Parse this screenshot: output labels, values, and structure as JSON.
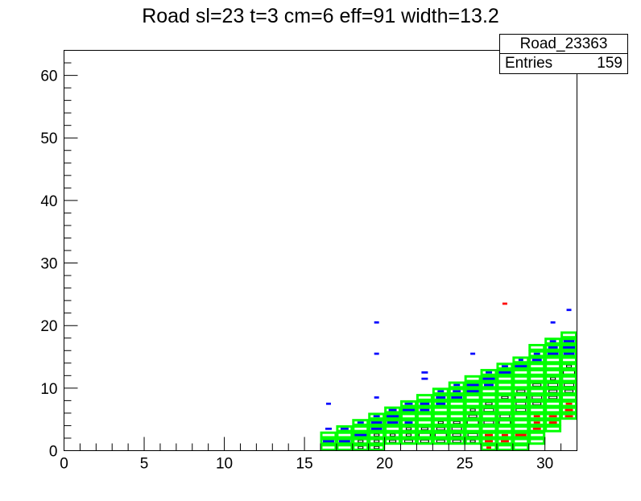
{
  "title": "Road sl=23 t=3 cm=6 eff=91 width=13.2",
  "stats": {
    "name": "Road_23363",
    "entries_label": "Entries",
    "entries_value": "159"
  },
  "colors": {
    "green": "#00ff00",
    "blue": "#0000ff",
    "red": "#ff0000",
    "black": "#000000"
  },
  "chart_data": {
    "type": "heatmap",
    "title": "Road sl=23 t=3 cm=6 eff=91 width=13.2",
    "xlabel": "",
    "ylabel": "",
    "xlim": [
      0,
      32
    ],
    "ylim": [
      0,
      64
    ],
    "xticks": [
      0,
      5,
      10,
      15,
      20,
      25,
      30
    ],
    "yticks": [
      0,
      10,
      20,
      30,
      40,
      50,
      60
    ],
    "entries": 159,
    "road_boxes": [
      {
        "x": 16,
        "y0": 0,
        "y1": 3
      },
      {
        "x": 17,
        "y0": 0,
        "y1": 4
      },
      {
        "x": 18,
        "y0": 0,
        "y1": 5
      },
      {
        "x": 19,
        "y0": 0,
        "y1": 6
      },
      {
        "x": 20,
        "y0": 1,
        "y1": 7
      },
      {
        "x": 21,
        "y0": 1,
        "y1": 8
      },
      {
        "x": 22,
        "y0": 1,
        "y1": 9
      },
      {
        "x": 23,
        "y0": 1,
        "y1": 10
      },
      {
        "x": 24,
        "y0": 1,
        "y1": 11
      },
      {
        "x": 25,
        "y0": 1,
        "y1": 12
      },
      {
        "x": 26,
        "y0": 0,
        "y1": 13
      },
      {
        "x": 27,
        "y0": 0,
        "y1": 14
      },
      {
        "x": 28,
        "y0": 0,
        "y1": 15
      },
      {
        "x": 29,
        "y0": 1,
        "y1": 17
      },
      {
        "x": 30,
        "y0": 3,
        "y1": 18
      },
      {
        "x": 31,
        "y0": 5,
        "y1": 19
      }
    ],
    "blue_cells": [
      {
        "x": 16,
        "y": 1,
        "w": 0.7
      },
      {
        "x": 16,
        "y": 3,
        "w": 0.4
      },
      {
        "x": 16,
        "y": 7,
        "w": 0.3
      },
      {
        "x": 17,
        "y": 1,
        "w": 0.7
      },
      {
        "x": 17,
        "y": 3,
        "w": 0.5
      },
      {
        "x": 18,
        "y": 2,
        "w": 0.8
      },
      {
        "x": 18,
        "y": 4,
        "w": 0.4
      },
      {
        "x": 19,
        "y": 3,
        "w": 0.7
      },
      {
        "x": 19,
        "y": 4,
        "w": 0.7
      },
      {
        "x": 19,
        "y": 5,
        "w": 0.4
      },
      {
        "x": 19,
        "y": 8,
        "w": 0.3
      },
      {
        "x": 19,
        "y": 15,
        "w": 0.3
      },
      {
        "x": 19,
        "y": 20,
        "w": 0.3
      },
      {
        "x": 20,
        "y": 4,
        "w": 0.7
      },
      {
        "x": 20,
        "y": 5,
        "w": 0.8
      },
      {
        "x": 20,
        "y": 6,
        "w": 0.5
      },
      {
        "x": 21,
        "y": 4,
        "w": 0.5
      },
      {
        "x": 21,
        "y": 6,
        "w": 0.8
      },
      {
        "x": 21,
        "y": 7,
        "w": 0.5
      },
      {
        "x": 22,
        "y": 6,
        "w": 0.6
      },
      {
        "x": 22,
        "y": 7,
        "w": 0.6
      },
      {
        "x": 22,
        "y": 11,
        "w": 0.4
      },
      {
        "x": 22,
        "y": 12,
        "w": 0.4
      },
      {
        "x": 23,
        "y": 7,
        "w": 0.6
      },
      {
        "x": 23,
        "y": 8,
        "w": 0.6
      },
      {
        "x": 23,
        "y": 9,
        "w": 0.4
      },
      {
        "x": 24,
        "y": 8,
        "w": 0.7
      },
      {
        "x": 24,
        "y": 9,
        "w": 0.5
      },
      {
        "x": 24,
        "y": 10,
        "w": 0.4
      },
      {
        "x": 25,
        "y": 9,
        "w": 0.8
      },
      {
        "x": 25,
        "y": 10,
        "w": 0.8
      },
      {
        "x": 25,
        "y": 15,
        "w": 0.3
      },
      {
        "x": 26,
        "y": 10,
        "w": 0.6
      },
      {
        "x": 26,
        "y": 11,
        "w": 0.8
      },
      {
        "x": 26,
        "y": 12,
        "w": 0.4
      },
      {
        "x": 27,
        "y": 12,
        "w": 0.8
      },
      {
        "x": 27,
        "y": 13,
        "w": 0.4
      },
      {
        "x": 28,
        "y": 13,
        "w": 0.9
      },
      {
        "x": 28,
        "y": 14,
        "w": 0.3
      },
      {
        "x": 29,
        "y": 14,
        "w": 0.6
      },
      {
        "x": 29,
        "y": 15,
        "w": 0.4
      },
      {
        "x": 30,
        "y": 15,
        "w": 0.7
      },
      {
        "x": 30,
        "y": 16,
        "w": 0.6
      },
      {
        "x": 30,
        "y": 17,
        "w": 0.4
      },
      {
        "x": 30,
        "y": 20,
        "w": 0.3
      },
      {
        "x": 31,
        "y": 15,
        "w": 0.7
      },
      {
        "x": 31,
        "y": 16,
        "w": 0.8
      },
      {
        "x": 31,
        "y": 17,
        "w": 0.7
      },
      {
        "x": 31,
        "y": 22,
        "w": 0.3
      }
    ],
    "red_cells": [
      {
        "x": 26,
        "y": 0,
        "w": 0.3
      },
      {
        "x": 26,
        "y": 1,
        "w": 0.5
      },
      {
        "x": 26,
        "y": 2,
        "w": 0.5
      },
      {
        "x": 27,
        "y": 1,
        "w": 0.5
      },
      {
        "x": 27,
        "y": 2,
        "w": 0.4
      },
      {
        "x": 27,
        "y": 23,
        "w": 0.3
      },
      {
        "x": 28,
        "y": 2,
        "w": 0.7
      },
      {
        "x": 29,
        "y": 3,
        "w": 0.5
      },
      {
        "x": 29,
        "y": 4,
        "w": 0.4
      },
      {
        "x": 29,
        "y": 5,
        "w": 0.4
      },
      {
        "x": 30,
        "y": 4,
        "w": 0.5
      },
      {
        "x": 30,
        "y": 5,
        "w": 0.5
      },
      {
        "x": 31,
        "y": 5,
        "w": 0.5
      },
      {
        "x": 31,
        "y": 6,
        "w": 0.5
      },
      {
        "x": 31,
        "y": 7,
        "w": 0.4
      }
    ],
    "black_cells": [
      {
        "x": 18,
        "y": 0,
        "w": 0.3
      },
      {
        "x": 18,
        "y": 1,
        "w": 0.3
      },
      {
        "x": 19,
        "y": 0,
        "w": 0.3
      },
      {
        "x": 19,
        "y": 1,
        "w": 0.3
      },
      {
        "x": 19,
        "y": 2,
        "w": 0.3
      },
      {
        "x": 20,
        "y": 1,
        "w": 0.4
      },
      {
        "x": 20,
        "y": 2,
        "w": 0.3
      },
      {
        "x": 21,
        "y": 1,
        "w": 0.5
      },
      {
        "x": 21,
        "y": 2,
        "w": 0.3
      },
      {
        "x": 21,
        "y": 3,
        "w": 0.3
      },
      {
        "x": 22,
        "y": 1,
        "w": 0.5
      },
      {
        "x": 22,
        "y": 2,
        "w": 0.7
      },
      {
        "x": 22,
        "y": 3,
        "w": 0.4
      },
      {
        "x": 23,
        "y": 1,
        "w": 0.5
      },
      {
        "x": 23,
        "y": 2,
        "w": 0.7
      },
      {
        "x": 23,
        "y": 3,
        "w": 0.5
      },
      {
        "x": 23,
        "y": 4,
        "w": 0.3
      },
      {
        "x": 24,
        "y": 1,
        "w": 0.5
      },
      {
        "x": 24,
        "y": 2,
        "w": 0.5
      },
      {
        "x": 24,
        "y": 3,
        "w": 0.6
      },
      {
        "x": 24,
        "y": 4,
        "w": 0.4
      },
      {
        "x": 25,
        "y": 1,
        "w": 0.3
      },
      {
        "x": 25,
        "y": 2,
        "w": 0.6
      },
      {
        "x": 25,
        "y": 4,
        "w": 0.7
      },
      {
        "x": 25,
        "y": 5,
        "w": 0.5
      },
      {
        "x": 25,
        "y": 6,
        "w": 0.3
      },
      {
        "x": 26,
        "y": 4,
        "w": 0.6
      },
      {
        "x": 26,
        "y": 5,
        "w": 0.8
      },
      {
        "x": 26,
        "y": 6,
        "w": 0.6
      },
      {
        "x": 26,
        "y": 7,
        "w": 0.4
      },
      {
        "x": 27,
        "y": 4,
        "w": 0.7
      },
      {
        "x": 27,
        "y": 5,
        "w": 0.6
      },
      {
        "x": 27,
        "y": 6,
        "w": 0.8
      },
      {
        "x": 27,
        "y": 8,
        "w": 0.4
      },
      {
        "x": 28,
        "y": 6,
        "w": 0.6
      },
      {
        "x": 28,
        "y": 7,
        "w": 0.6
      },
      {
        "x": 28,
        "y": 8,
        "w": 0.7
      },
      {
        "x": 28,
        "y": 9,
        "w": 0.5
      },
      {
        "x": 29,
        "y": 7,
        "w": 0.5
      },
      {
        "x": 29,
        "y": 8,
        "w": 0.6
      },
      {
        "x": 29,
        "y": 9,
        "w": 0.8
      },
      {
        "x": 29,
        "y": 10,
        "w": 0.5
      },
      {
        "x": 30,
        "y": 8,
        "w": 0.5
      },
      {
        "x": 30,
        "y": 9,
        "w": 0.5
      },
      {
        "x": 30,
        "y": 10,
        "w": 0.6
      },
      {
        "x": 30,
        "y": 11,
        "w": 0.3
      },
      {
        "x": 31,
        "y": 9,
        "w": 0.5
      },
      {
        "x": 31,
        "y": 10,
        "w": 0.6
      },
      {
        "x": 31,
        "y": 11,
        "w": 0.8
      },
      {
        "x": 31,
        "y": 12,
        "w": 0.7
      },
      {
        "x": 31,
        "y": 13,
        "w": 0.3
      }
    ]
  }
}
